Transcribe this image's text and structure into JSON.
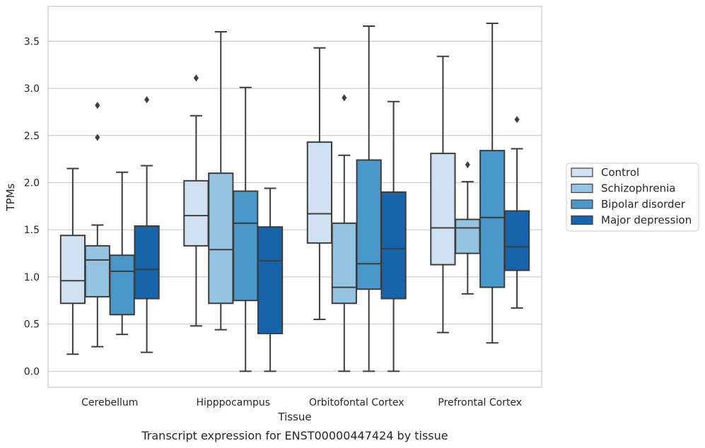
{
  "chart_data": {
    "type": "box",
    "title": "",
    "caption": "Transcript expression for ENST00000447424 by tissue",
    "xlabel": "Tissue",
    "ylabel": "TPMs",
    "ylim": [
      -0.17,
      3.87
    ],
    "yticks": [
      "0.0",
      "0.5",
      "1.0",
      "1.5",
      "2.0",
      "2.5",
      "3.0",
      "3.5"
    ],
    "grid": "horizontal",
    "legend_position": "right",
    "categories": [
      "Cerebellum",
      "Hipppocampus",
      "Orbitofontal Cortex",
      "Prefrontal Cortex"
    ],
    "series": [
      {
        "name": "Control",
        "color": "#d0e1f2",
        "boxes": [
          {
            "whislo": 0.18,
            "q1": 0.72,
            "med": 0.96,
            "q3": 1.44,
            "whishi": 2.15,
            "fliers": []
          },
          {
            "whislo": 0.48,
            "q1": 1.33,
            "med": 1.65,
            "q3": 2.02,
            "whishi": 2.71,
            "fliers": [
              3.11
            ]
          },
          {
            "whislo": 0.55,
            "q1": 1.36,
            "med": 1.67,
            "q3": 2.43,
            "whishi": 3.43,
            "fliers": []
          },
          {
            "whislo": 0.41,
            "q1": 1.13,
            "med": 1.52,
            "q3": 2.31,
            "whishi": 3.34,
            "fliers": []
          }
        ]
      },
      {
        "name": "Schizophrenia",
        "color": "#94c4df",
        "boxes": [
          {
            "whislo": 0.26,
            "q1": 0.79,
            "med": 1.18,
            "q3": 1.33,
            "whishi": 1.55,
            "fliers": [
              2.48,
              2.82
            ]
          },
          {
            "whislo": 0.44,
            "q1": 0.72,
            "med": 1.29,
            "q3": 2.1,
            "whishi": 3.6,
            "fliers": []
          },
          {
            "whislo": 0.0,
            "q1": 0.72,
            "med": 0.89,
            "q3": 1.57,
            "whishi": 2.29,
            "fliers": [
              2.9
            ]
          },
          {
            "whislo": 0.82,
            "q1": 1.25,
            "med": 1.52,
            "q3": 1.61,
            "whishi": 2.01,
            "fliers": [
              2.19
            ]
          }
        ]
      },
      {
        "name": "Bipolar disorder",
        "color": "#4a98c9",
        "boxes": [
          {
            "whislo": 0.39,
            "q1": 0.6,
            "med": 1.06,
            "q3": 1.23,
            "whishi": 2.11,
            "fliers": []
          },
          {
            "whislo": 0.0,
            "q1": 0.75,
            "med": 1.57,
            "q3": 1.91,
            "whishi": 3.01,
            "fliers": []
          },
          {
            "whislo": 0.0,
            "q1": 0.87,
            "med": 1.14,
            "q3": 2.24,
            "whishi": 3.66,
            "fliers": []
          },
          {
            "whislo": 0.3,
            "q1": 0.89,
            "med": 1.63,
            "q3": 2.34,
            "whishi": 3.69,
            "fliers": []
          }
        ]
      },
      {
        "name": "Major depression",
        "color": "#1764ab",
        "boxes": [
          {
            "whislo": 0.2,
            "q1": 0.77,
            "med": 1.08,
            "q3": 1.54,
            "whishi": 2.18,
            "fliers": [
              2.88
            ]
          },
          {
            "whislo": 0.0,
            "q1": 0.4,
            "med": 1.17,
            "q3": 1.53,
            "whishi": 1.94,
            "fliers": []
          },
          {
            "whislo": 0.0,
            "q1": 0.77,
            "med": 1.3,
            "q3": 1.9,
            "whishi": 2.86,
            "fliers": []
          },
          {
            "whislo": 0.67,
            "q1": 1.07,
            "med": 1.32,
            "q3": 1.7,
            "whishi": 2.36,
            "fliers": [
              2.67
            ]
          }
        ]
      }
    ]
  }
}
